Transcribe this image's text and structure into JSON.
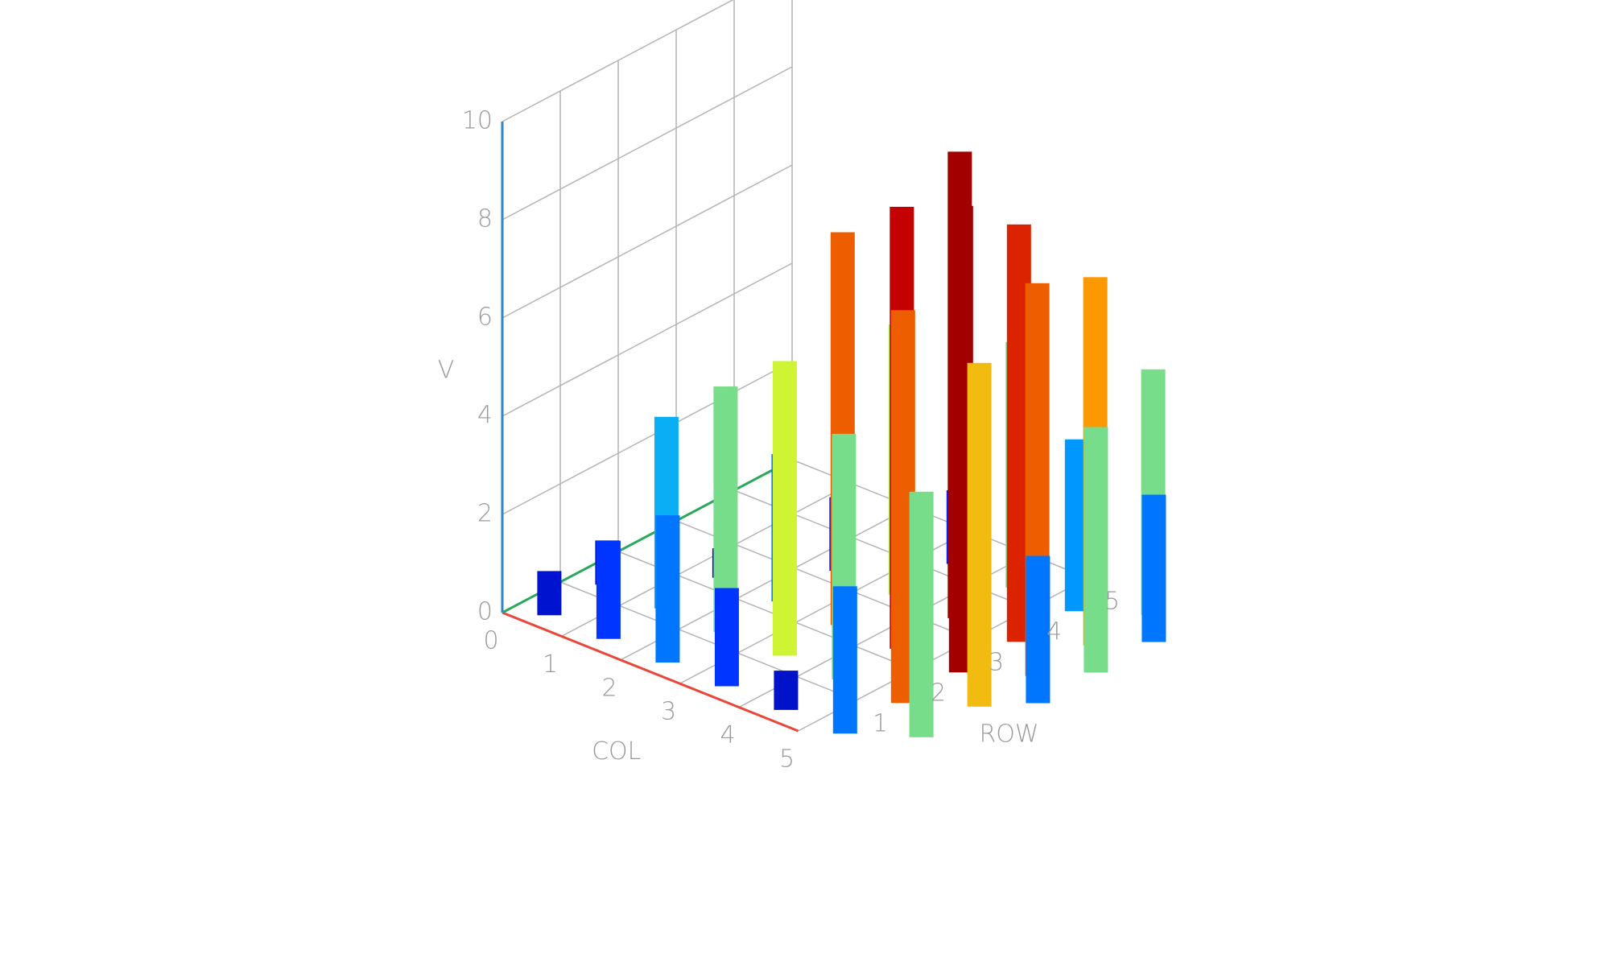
{
  "chart_data": {
    "type": "bar3d",
    "title": "",
    "xlabel": "COL",
    "ylabel": "ROW",
    "zlabel": "V",
    "xlim": [
      0,
      5
    ],
    "ylim": [
      0,
      5
    ],
    "zlim": [
      0,
      10
    ],
    "x_ticks": [
      "0",
      "1",
      "2",
      "3",
      "4",
      "5"
    ],
    "y_ticks": [
      "1",
      "2",
      "3",
      "4",
      "5"
    ],
    "z_ticks": [
      "0",
      "2",
      "4",
      "6",
      "8",
      "10"
    ],
    "grid": true,
    "colorscale": "jet",
    "axis_colors": {
      "x": "#e8473a",
      "y": "#2aa85a",
      "z": "#2f86c8"
    },
    "points": [
      {
        "col": 0.5,
        "row": 0.3,
        "v": 0.9
      },
      {
        "col": 0.5,
        "row": 1.3,
        "v": 0.9
      },
      {
        "col": 1.5,
        "row": 0.3,
        "v": 2.0
      },
      {
        "col": 1.5,
        "row": 1.3,
        "v": 3.9
      },
      {
        "col": 1.5,
        "row": 2.3,
        "v": 0.6
      },
      {
        "col": 2.5,
        "row": 0.3,
        "v": 3.0
      },
      {
        "col": 2.5,
        "row": 1.3,
        "v": 5.0
      },
      {
        "col": 2.5,
        "row": 2.3,
        "v": 3.0
      },
      {
        "col": 2.5,
        "row": 3.3,
        "v": 1.5
      },
      {
        "col": 3.5,
        "row": 0.3,
        "v": 2.0
      },
      {
        "col": 3.5,
        "row": 1.3,
        "v": 6.0
      },
      {
        "col": 3.5,
        "row": 2.3,
        "v": 8.0
      },
      {
        "col": 3.5,
        "row": 3.3,
        "v": 5.5
      },
      {
        "col": 3.5,
        "row": 4.3,
        "v": 1.5
      },
      {
        "col": 4.5,
        "row": 0.3,
        "v": 0.8
      },
      {
        "col": 4.5,
        "row": 1.3,
        "v": 5.0
      },
      {
        "col": 4.5,
        "row": 2.3,
        "v": 9.0
      },
      {
        "col": 4.5,
        "row": 3.3,
        "v": 9.5
      },
      {
        "col": 4.5,
        "row": 4.3,
        "v": 5.0
      },
      {
        "col": 5.5,
        "row": 0.3,
        "v": 3.0
      },
      {
        "col": 5.5,
        "row": 1.3,
        "v": 8.0
      },
      {
        "col": 5.5,
        "row": 2.3,
        "v": 9.5
      },
      {
        "col": 5.5,
        "row": 3.3,
        "v": 8.5
      },
      {
        "col": 5.5,
        "row": 4.3,
        "v": 3.5
      },
      {
        "col": 6.3,
        "row": 0.8,
        "v": 5.0
      },
      {
        "col": 6.3,
        "row": 1.8,
        "v": 7.0
      },
      {
        "col": 6.3,
        "row": 2.8,
        "v": 8.0
      },
      {
        "col": 6.3,
        "row": 3.8,
        "v": 7.5
      },
      {
        "col": 6.3,
        "row": 4.8,
        "v": 5.0
      },
      {
        "col": 6.8,
        "row": 2.3,
        "v": 3.0
      },
      {
        "col": 6.8,
        "row": 3.3,
        "v": 5.0
      },
      {
        "col": 6.8,
        "row": 4.3,
        "v": 3.0
      }
    ]
  }
}
